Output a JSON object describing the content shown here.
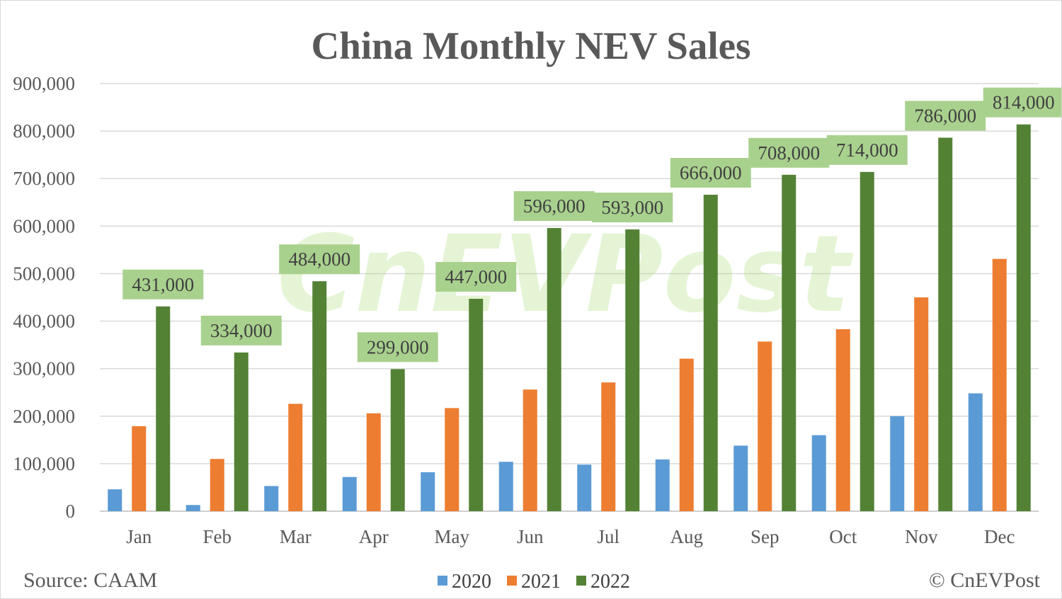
{
  "chart_data": {
    "type": "bar",
    "title": "China Monthly NEV Sales",
    "categories": [
      "Jan",
      "Feb",
      "Mar",
      "Apr",
      "May",
      "Jun",
      "Jul",
      "Aug",
      "Sep",
      "Oct",
      "Nov",
      "Dec"
    ],
    "series": [
      {
        "name": "2020",
        "color": "#5b9bd5",
        "values": [
          46000,
          13000,
          53000,
          72000,
          82000,
          104000,
          98000,
          109000,
          138000,
          160000,
          200000,
          248000
        ]
      },
      {
        "name": "2021",
        "color": "#ed7d31",
        "values": [
          179000,
          110000,
          226000,
          206000,
          217000,
          256000,
          271000,
          321000,
          357000,
          383000,
          450000,
          531000
        ]
      },
      {
        "name": "2022",
        "color": "#548235",
        "values": [
          431000,
          334000,
          484000,
          299000,
          447000,
          596000,
          593000,
          666000,
          708000,
          714000,
          786000,
          814000
        ]
      }
    ],
    "data_labels": [
      "431,000",
      "334,000",
      "484,000",
      "299,000",
      "447,000",
      "596,000",
      "593,000",
      "666,000",
      "708,000",
      "714,000",
      "786,000",
      "814,000"
    ],
    "data_label_series": "2022",
    "data_label_fill": "#a9d18e",
    "ylim": [
      0,
      900000
    ],
    "yticks": [
      "0",
      "100,000",
      "200,000",
      "300,000",
      "400,000",
      "500,000",
      "600,000",
      "700,000",
      "800,000",
      "900,000"
    ],
    "grid": true,
    "legend_position": "bottom"
  },
  "footer": {
    "source": "Source: CAAM",
    "credit": "© CnEVPost"
  },
  "watermark": "CnEVPost"
}
